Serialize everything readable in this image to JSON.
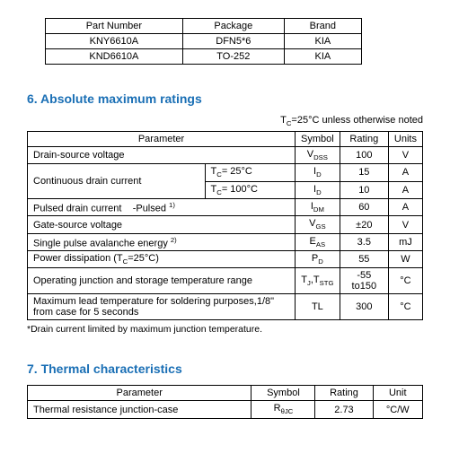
{
  "parts_table": {
    "columns": [
      "Part Number",
      "Package",
      "Brand"
    ],
    "rows": [
      [
        "KNY6610A",
        "DFN5*6",
        "KIA"
      ],
      [
        "KND6610A",
        "TO-252",
        "KIA"
      ]
    ]
  },
  "section6": {
    "title": "6. Absolute maximum ratings",
    "note": "T",
    "note_sub": "C",
    "note_rest": "=25°C unless otherwise noted",
    "columns": [
      "Parameter",
      "Symbol",
      "Rating",
      "Units"
    ],
    "rows": {
      "r0": {
        "param": "Drain-source voltage",
        "sym": "V",
        "sym_sub": "DSS",
        "rating": "100",
        "units": "V"
      },
      "r1": {
        "param": "Continuous drain current",
        "cond1": "T",
        "cond1_sub": "C",
        "cond1_rest": "= 25°C",
        "sym1": "I",
        "sym1_sub": "D",
        "rating1": "15",
        "units1": "A",
        "cond2": "T",
        "cond2_sub": "C",
        "cond2_rest": "= 100°C",
        "sym2": "I",
        "sym2_sub": "D",
        "rating2": "10",
        "units2": "A"
      },
      "r2": {
        "param": "Pulsed drain current",
        "param_extra": "-Pulsed ",
        "param_sup": "1)",
        "sym": "I",
        "sym_sub": "DM",
        "rating": "60",
        "units": "A"
      },
      "r3": {
        "param": "Gate-source voltage",
        "sym": "V",
        "sym_sub": "GS",
        "rating": "±20",
        "units": "V"
      },
      "r4": {
        "param": "Single pulse avalanche energy ",
        "param_sup": "2)",
        "sym": "E",
        "sym_sub": "AS",
        "rating": "3.5",
        "units": "mJ"
      },
      "r5": {
        "param": "Power dissipation (T",
        "param_sub": "C",
        "param_rest": "=25°C)",
        "sym": "P",
        "sym_sub": "D",
        "rating": "55",
        "units": "W"
      },
      "r6": {
        "param": "Operating junction and storage temperature range",
        "sym": "T",
        "sym_sub": "J",
        "sym2": ",T",
        "sym2_sub": "STG",
        "rating": "-55 to150",
        "units": "°C"
      },
      "r7": {
        "param": "Maximum lead temperature for soldering purposes,1/8\" from case for 5 seconds",
        "sym": "TL",
        "rating": "300",
        "units": "°C"
      }
    },
    "footnote": "*Drain current limited by maximum junction temperature."
  },
  "section7": {
    "title": "7. Thermal characteristics",
    "columns": [
      "Parameter",
      "Symbol",
      "Rating",
      "Unit"
    ],
    "rows": {
      "r0": {
        "param": "Thermal resistance junction-case",
        "sym": "R",
        "sym_sub": "θJC",
        "rating": "2.73",
        "units": "°C/W"
      }
    }
  }
}
